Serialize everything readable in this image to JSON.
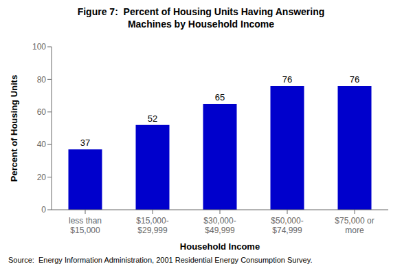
{
  "chart_data": {
    "type": "bar",
    "title": "Figure 7:  Percent of Housing Units Having Answering\nMachines by Household Income",
    "categories": [
      "less than\n$15,000",
      "$15,000-\n$29,999",
      "$30,000-\n$49,999",
      "$50,000-\n$74,999",
      "$75,000 or\nmore"
    ],
    "values": [
      37,
      52,
      65,
      76,
      76
    ],
    "color": "#0000CC",
    "xlabel": "Household Income",
    "ylabel": "Percent of Housing Units",
    "ylim": [
      0,
      100
    ],
    "yticks": [
      0,
      20,
      40,
      60,
      80,
      100
    ],
    "grid": false,
    "data_labels": true,
    "annotations": [
      "Source:  Energy Information Administration, 2001 Residential Energy Consumption Survey."
    ]
  }
}
